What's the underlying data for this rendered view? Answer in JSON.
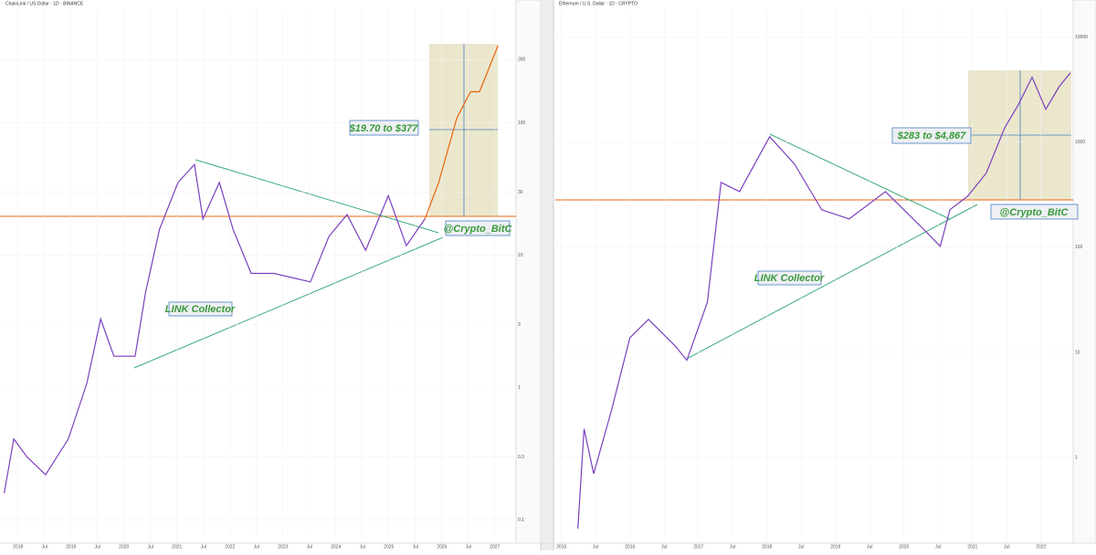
{
  "chart_data": [
    {
      "type": "line",
      "title": "ChainLink / US Dollar · 1D · BINANCE",
      "log_scale": true,
      "xlim": [
        2017.66,
        2027.4
      ],
      "ylim": [
        0.067,
        723
      ],
      "xticks": [
        2018,
        {
          "value": 2018.5,
          "label": "Jul"
        },
        2019,
        {
          "value": 2019.5,
          "label": "Jul"
        },
        2020,
        {
          "value": 2020.5,
          "label": "Jul"
        },
        2021,
        {
          "value": 2021.5,
          "label": "Jul"
        },
        2022,
        {
          "value": 2022.5,
          "label": "Jul"
        },
        2023,
        {
          "value": 2023.5,
          "label": "Jul"
        },
        2024,
        {
          "value": 2024.5,
          "label": "Jul"
        },
        2025,
        {
          "value": 2025.5,
          "label": "Jul"
        },
        2026,
        {
          "value": 2026.5,
          "label": "Jul"
        },
        2027
      ],
      "yticks": [
        0.1,
        0.3,
        1,
        3,
        10,
        30,
        100,
        300
      ],
      "series": [
        {
          "color": "#7b3fbf",
          "x": [
            2017.74,
            2017.92,
            2018.17,
            2018.52,
            2018.95,
            2019.3,
            2019.56,
            2019.81,
            2020.21,
            2020.41,
            2020.67,
            2021.02,
            2021.33,
            2021.49,
            2021.8,
            2022.06,
            2022.4,
            2022.83,
            2023.52,
            2023.87,
            2024.21,
            2024.56,
            2024.99,
            2025.33,
            2025.68
          ],
          "values": [
            0.16,
            0.41,
            0.3,
            0.22,
            0.41,
            1.08,
            3.3,
            1.73,
            1.73,
            5.3,
            15.7,
            35.5,
            48.5,
            18.8,
            35.5,
            15.7,
            7.3,
            7.3,
            6.3,
            13.9,
            20.3,
            10.9,
            28.2,
            11.8,
            18.8
          ]
        },
        {
          "color": "#e8650c",
          "x": [
            2025.68,
            2025.94,
            2026.28,
            2026.54,
            2026.71,
            2027.06
          ],
          "values": [
            18.8,
            35.5,
            108,
            172,
            172,
            384
          ]
        }
      ],
      "annotations": [
        "$19.70 to $377",
        "@Crypto_BitC",
        "LINK Collector"
      ]
    },
    {
      "type": "line",
      "title": "Ethereum / U.S. Dollar · 1D · CRYPTO",
      "log_scale": true,
      "xlim": [
        2014.91,
        2022.47
      ],
      "ylim": [
        0.153,
        18400
      ],
      "xticks": [
        2015,
        {
          "value": 2015.5,
          "label": "Jul"
        },
        2016,
        {
          "value": 2016.5,
          "label": "Jul"
        },
        2017,
        {
          "value": 2017.5,
          "label": "Jul"
        },
        2018,
        {
          "value": 2018.5,
          "label": "Jul"
        },
        2019,
        {
          "value": 2019.5,
          "label": "Jul"
        },
        2020,
        {
          "value": 2020.5,
          "label": "Jul"
        },
        2021,
        {
          "value": 2021.5,
          "label": "Jul"
        },
        2022
      ],
      "yticks": [
        1,
        10,
        100,
        1000,
        10000
      ],
      "series": [
        {
          "color": "#7b3fbf",
          "x": [
            2015.24,
            2015.33,
            2015.47,
            2015.73,
            2016.0,
            2016.27,
            2016.67,
            2016.83,
            2017.13,
            2017.33,
            2017.6,
            2018.04,
            2018.4,
            2018.8,
            2019.2,
            2019.73,
            2020.27,
            2020.53,
            2020.67,
            2020.93,
            2021.2,
            2021.47,
            2021.67,
            2021.87,
            2022.07,
            2022.27,
            2022.43
          ],
          "values": [
            0.21,
            1.87,
            0.7,
            2.8,
            13.8,
            20.6,
            11.3,
            8.4,
            30,
            414,
            338,
            1124,
            619,
            227,
            186,
            338,
            152,
            102,
            227,
            306,
            506,
            1368,
            2270,
            4150,
            2050,
            3400,
            4570
          ]
        }
      ],
      "annotations": [
        "$283 to $4,867",
        "@Crypto_BitC",
        "LINK Collector"
      ]
    }
  ]
}
